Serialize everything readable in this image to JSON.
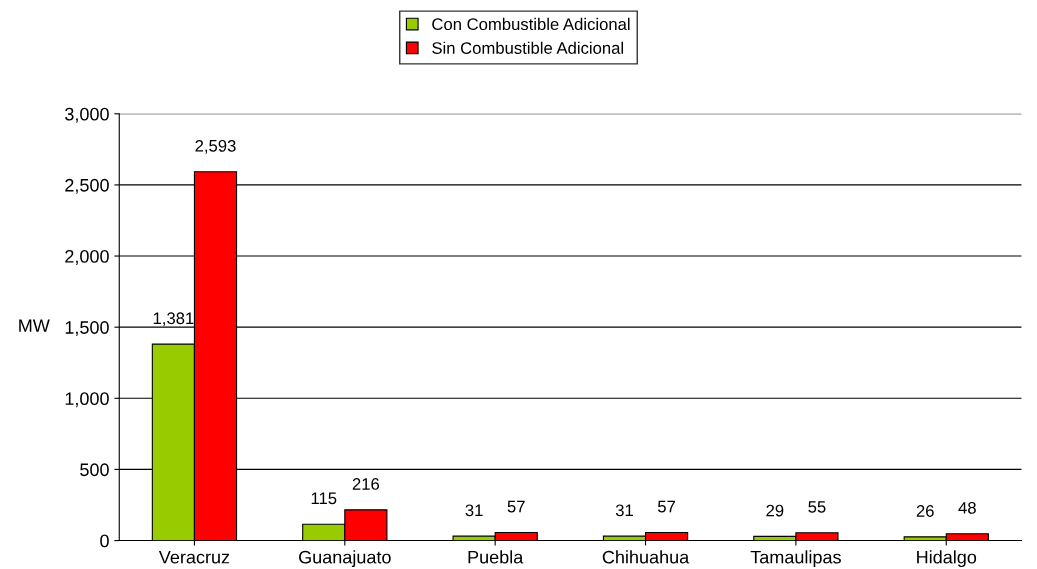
{
  "chart_data": {
    "type": "bar",
    "ylabel": "MW",
    "categories": [
      "Veracruz",
      "Guanajuato",
      "Puebla",
      "Chihuahua",
      "Tamaulipas",
      "Hidalgo"
    ],
    "series": [
      {
        "name": "Con Combustible Adicional",
        "color": "#99cc00",
        "values": [
          1381,
          115,
          31,
          31,
          29,
          26
        ],
        "value_labels": [
          "1,381",
          "115",
          "31",
          "31",
          "29",
          "26"
        ]
      },
      {
        "name": "Sin Combustible Adicional",
        "color": "#ff0000",
        "values": [
          2593,
          216,
          57,
          57,
          55,
          48
        ],
        "value_labels": [
          "2,593",
          "216",
          "57",
          "57",
          "55",
          "48"
        ]
      }
    ],
    "ylim": [
      0,
      3000
    ],
    "yticks": [
      0,
      {
        "value": 500,
        "label": "500"
      },
      {
        "value": 1000,
        "label": "1,000"
      },
      {
        "value": 1500,
        "label": "1,500"
      },
      {
        "value": 2000,
        "label": "2,000"
      },
      {
        "value": 2500,
        "label": "2,500"
      },
      {
        "value": 3000,
        "label": "3,000"
      }
    ],
    "grid": "y",
    "legend": "top"
  }
}
